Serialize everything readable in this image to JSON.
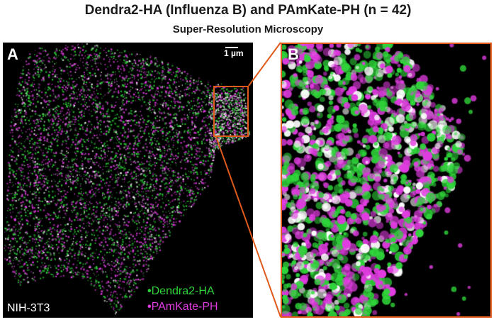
{
  "title": "Dendra2-HA (Influenza B) and PAmKate-PH (n = 42)",
  "subtitle": "Super-Resolution Microscopy",
  "panel_a": {
    "label": "A",
    "scale_bar": "1 µm",
    "cell_line": "NIH-3T3",
    "legend": [
      {
        "label": "Dendra2-HA",
        "color": "#2fd43a"
      },
      {
        "label": "PAmKate-PH",
        "color": "#e03ce0"
      }
    ]
  },
  "panel_b": {
    "label": "B"
  },
  "colors": {
    "green_channel": "#2fd43a",
    "magenta_channel": "#e03ce0",
    "overlap": "#ffffff",
    "roi_outline": "#e05a1b"
  }
}
